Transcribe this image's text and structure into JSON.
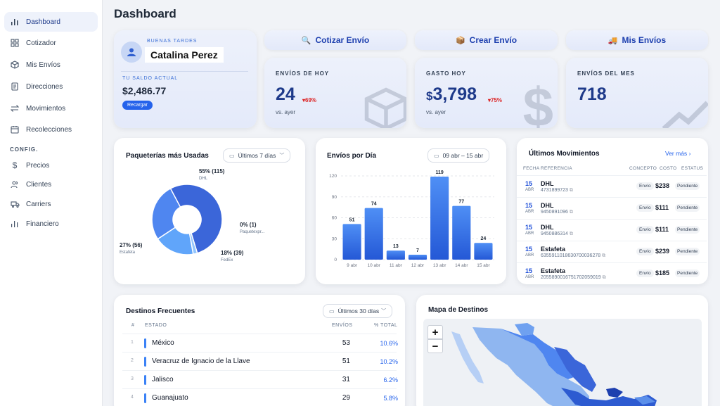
{
  "sidebar": {
    "items": [
      {
        "label": "Dashboard",
        "icon": "bar-chart-icon"
      },
      {
        "label": "Cotizador",
        "icon": "grid-icon"
      },
      {
        "label": "Mis Envíos",
        "icon": "box-icon"
      },
      {
        "label": "Direcciones",
        "icon": "document-icon"
      },
      {
        "label": "Movimientos",
        "icon": "arrows-icon"
      },
      {
        "label": "Recolecciones",
        "icon": "calendar-icon"
      }
    ],
    "section_label": "CONFIG.",
    "config_items": [
      {
        "label": "Precios",
        "icon": "dollar-icon"
      },
      {
        "label": "Clientes",
        "icon": "users-icon"
      },
      {
        "label": "Carriers",
        "icon": "truck-icon"
      },
      {
        "label": "Financiero",
        "icon": "bar-chart-icon"
      }
    ]
  },
  "header": {
    "title": "Dashboard"
  },
  "welcome": {
    "greeting": "BUENAS TARDES",
    "name": "Catalina Perez",
    "balance_label": "TU SALDO ACTUAL",
    "balance": "$2,486.77",
    "recharge_label": "Recargar"
  },
  "actions": {
    "quote": "Cotizar Envío",
    "create": "Crear Envío",
    "mine": "Mis Envíos"
  },
  "stats": {
    "today": {
      "label": "ENVÍOS DE HOY",
      "value": "24",
      "delta": "▾69%",
      "sub": "vs. ayer"
    },
    "spend": {
      "label": "GASTO HOY",
      "currency": "$",
      "value": "3,798",
      "delta": "▾75%",
      "sub": "vs. ayer"
    },
    "month": {
      "label": "ENVÍOS DEL MES",
      "value": "718"
    }
  },
  "carriers_card": {
    "title": "Paqueterías más Usadas",
    "filter": "Últimos 7 días"
  },
  "daily_card": {
    "title": "Envíos por Día",
    "range": "09 abr – 15 abr"
  },
  "chart_data": [
    {
      "type": "pie",
      "title": "Paqueterías más Usadas",
      "slices": [
        {
          "name": "DHL",
          "value": 115,
          "percent": "55%",
          "label": "55% (115)",
          "color": "#3b66d9"
        },
        {
          "name": "Paquetexpr...",
          "value": 1,
          "percent": "0%",
          "label": "0% (1)",
          "color": "#93c5fd"
        },
        {
          "name": "FedEx",
          "value": 39,
          "percent": "18%",
          "label": "18% (39)",
          "color": "#60a5fa"
        },
        {
          "name": "Estafeta",
          "value": 56,
          "percent": "27%",
          "label": "27% (56)",
          "color": "#4f86f0"
        }
      ]
    },
    {
      "type": "bar",
      "title": "Envíos por Día",
      "categories": [
        "9 abr",
        "10 abr",
        "11 abr",
        "12 abr",
        "13 abr",
        "14 abr",
        "15 abr"
      ],
      "values": [
        51,
        74,
        13,
        7,
        119,
        77,
        24
      ],
      "yticks": [
        0,
        30,
        60,
        90,
        120
      ],
      "ylim": [
        0,
        120
      ]
    }
  ],
  "movements": {
    "title": "Últimos Movimientos",
    "more": "Ver más",
    "headers": [
      "FECHA",
      "REFERENCIA",
      "CONCEPTO",
      "COSTO",
      "ESTATUS"
    ],
    "rows": [
      {
        "day": "15",
        "month": "ABR",
        "carrier": "DHL",
        "ref": "4731899723",
        "concept": "Envío",
        "cost": "$238",
        "status": "Pendiente"
      },
      {
        "day": "15",
        "month": "ABR",
        "carrier": "DHL",
        "ref": "9450891096",
        "concept": "Envío",
        "cost": "$111",
        "status": "Pendiente"
      },
      {
        "day": "15",
        "month": "ABR",
        "carrier": "DHL",
        "ref": "9450886314",
        "concept": "Envío",
        "cost": "$111",
        "status": "Pendiente"
      },
      {
        "day": "15",
        "month": "ABR",
        "carrier": "Estafeta",
        "ref": "6355911018630700036278",
        "concept": "Envío",
        "cost": "$239",
        "status": "Pendiente"
      },
      {
        "day": "15",
        "month": "ABR",
        "carrier": "Estafeta",
        "ref": "2055890016751702059019",
        "concept": "Envío",
        "cost": "$185",
        "status": "Pendiente"
      }
    ]
  },
  "destinations": {
    "title": "Destinos Frecuentes",
    "filter": "Últimos 30 días",
    "headers": {
      "num": "#",
      "state": "ESTADO",
      "count": "ENVÍOS",
      "pct": "% TOTAL"
    },
    "rows": [
      {
        "n": "1",
        "state": "México",
        "count": "53",
        "pct": "10.6%"
      },
      {
        "n": "2",
        "state": "Veracruz de Ignacio de la Llave",
        "count": "51",
        "pct": "10.2%"
      },
      {
        "n": "3",
        "state": "Jalisco",
        "count": "31",
        "pct": "6.2%"
      },
      {
        "n": "4",
        "state": "Guanajuato",
        "count": "29",
        "pct": "5.8%"
      }
    ]
  },
  "map": {
    "title": "Mapa de Destinos",
    "zoom_in": "+",
    "zoom_out": "−"
  }
}
